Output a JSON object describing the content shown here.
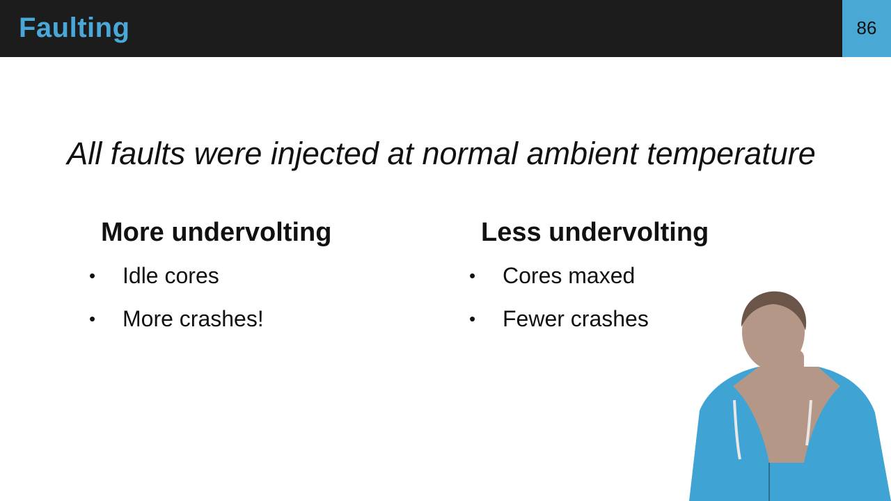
{
  "header": {
    "title": "Faulting",
    "page_number": "86"
  },
  "main": {
    "statement": "All faults were injected at normal ambient temperature",
    "columns": [
      {
        "heading": "More undervolting",
        "bullets": [
          "Idle cores",
          "More crashes!"
        ]
      },
      {
        "heading": "Less undervolting",
        "bullets": [
          "Cores maxed",
          "Fewer crashes"
        ]
      }
    ],
    "bullet_symbol": "•"
  },
  "colors": {
    "title_bar": "#1c1c1c",
    "title_text": "#4aa8d8",
    "page_box": "#49a9d4",
    "body_text": "#111111",
    "presenter_hoodie": "#3fa3d3",
    "presenter_skin": "#b59787"
  }
}
